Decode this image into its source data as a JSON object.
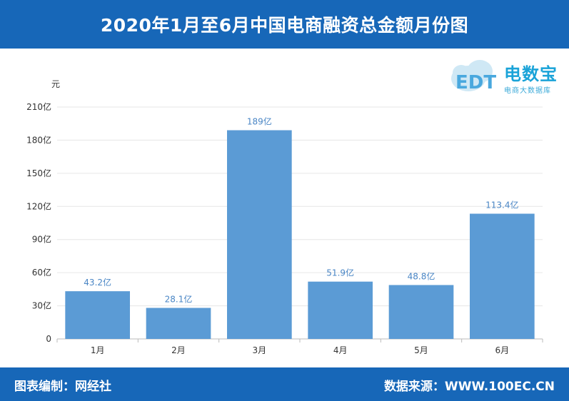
{
  "header": {
    "title": "2020年1月至6月中国电商融资总金额月份图"
  },
  "logo": {
    "text": "电数宝",
    "sub": "电商大数据库",
    "mark": "EDT"
  },
  "footer": {
    "left": "图表编制：网经社",
    "right": "数据来源：WWW.100EC.CN"
  },
  "colors": {
    "header_bg": "#1767b8",
    "bar": "#5b9bd5",
    "label": "#4a86c5"
  },
  "chart_data": {
    "type": "bar",
    "ylabel": "元",
    "categories": [
      "1月",
      "2月",
      "3月",
      "4月",
      "5月",
      "6月"
    ],
    "values": [
      43.2,
      28.1,
      189,
      51.9,
      48.8,
      113.4
    ],
    "value_labels": [
      "43.2亿",
      "28.1亿",
      "189亿",
      "51.9亿",
      "48.8亿",
      "113.4亿"
    ],
    "yticks": [
      0,
      30,
      60,
      90,
      120,
      150,
      180,
      210
    ],
    "ytick_labels": [
      "0",
      "30亿",
      "60亿",
      "90亿",
      "120亿",
      "150亿",
      "180亿",
      "210亿"
    ],
    "ylim": [
      0,
      210
    ],
    "grid": true
  }
}
